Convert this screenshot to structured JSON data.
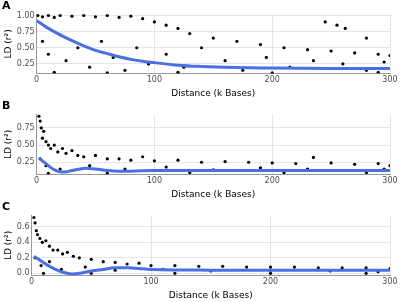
{
  "chart_data": [
    {
      "type": "scatter",
      "title": "A",
      "x_label": "Distance (k Bases)",
      "y_label": "LD (r²)",
      "xlim": [
        0,
        300
      ],
      "ylim": [
        0.1,
        1.02
      ],
      "xticks": [
        0,
        100,
        200,
        300
      ],
      "yticks": [
        0.25,
        {
          "value": 0.5,
          "label": "0.50"
        },
        0.75,
        {
          "value": 1,
          "label": "1.00"
        }
      ],
      "grid": true,
      "series": [
        {
          "type": "scatter",
          "color": "#000000",
          "marker": "circle",
          "x": [
            1,
            5,
            10,
            15,
            20,
            30,
            40,
            50,
            60,
            70,
            80,
            90,
            100,
            110,
            120,
            130,
            150,
            170,
            190,
            210,
            230,
            250,
            270,
            290,
            300,
            245,
            255,
            262,
            280,
            5,
            10,
            20,
            25,
            35,
            45,
            55,
            65,
            75,
            85,
            95,
            110,
            125,
            140,
            160,
            175,
            195,
            215,
            235,
            260,
            280,
            295,
            15,
            60,
            120,
            200,
            290
          ],
          "values": [
            1.0,
            0.98,
            1.0,
            0.97,
            1.0,
            0.99,
            1.0,
            0.98,
            1.0,
            0.97,
            0.99,
            0.95,
            0.9,
            0.85,
            0.8,
            0.72,
            0.65,
            0.6,
            0.55,
            0.5,
            0.47,
            0.45,
            0.42,
            0.4,
            0.38,
            0.9,
            0.85,
            0.8,
            0.65,
            0.6,
            0.4,
            0.7,
            0.3,
            0.5,
            0.2,
            0.6,
            0.35,
            0.15,
            0.5,
            0.25,
            0.4,
            0.2,
            0.5,
            0.3,
            0.15,
            0.35,
            0.2,
            0.3,
            0.25,
            0.15,
            0.28,
            0.12,
            0.11,
            0.12,
            0.11,
            0.12
          ]
        },
        {
          "type": "line",
          "color": "#4a6fe3",
          "line_style": "solid",
          "x": [
            0,
            5,
            10,
            20,
            30,
            40,
            50,
            60,
            70,
            80,
            90,
            100,
            120,
            140,
            160,
            180,
            200,
            250,
            300
          ],
          "values": [
            0.92,
            0.86,
            0.8,
            0.7,
            0.61,
            0.53,
            0.46,
            0.41,
            0.36,
            0.32,
            0.29,
            0.27,
            0.23,
            0.21,
            0.2,
            0.19,
            0.185,
            0.18,
            0.18
          ]
        }
      ]
    },
    {
      "type": "scatter",
      "title": "B",
      "x_label": "Distance (k Bases)",
      "y_label": "LD (r²)",
      "xlim": [
        0,
        300
      ],
      "ylim": [
        0.07,
        0.95
      ],
      "xticks": [
        0,
        100,
        200,
        300
      ],
      "yticks": [
        0.25,
        {
          "value": 0.5,
          "label": "0.50"
        },
        0.75
      ],
      "grid": true,
      "series": [
        {
          "type": "scatter",
          "color": "#000000",
          "marker": "circle",
          "x": [
            2,
            3,
            4,
            5,
            6,
            8,
            10,
            12,
            15,
            18,
            22,
            25,
            30,
            35,
            40,
            50,
            60,
            70,
            80,
            90,
            100,
            120,
            140,
            160,
            180,
            200,
            220,
            235,
            250,
            270,
            290,
            300,
            3,
            8,
            20,
            45,
            75,
            110,
            150,
            190,
            230,
            260,
            295,
            10,
            60,
            130,
            210,
            280
          ],
          "values": [
            0.92,
            0.85,
            0.75,
            0.6,
            0.7,
            0.55,
            0.5,
            0.45,
            0.5,
            0.4,
            0.45,
            0.38,
            0.42,
            0.35,
            0.33,
            0.35,
            0.3,
            0.3,
            0.28,
            0.33,
            0.27,
            0.28,
            0.25,
            0.26,
            0.25,
            0.24,
            0.23,
            0.32,
            0.24,
            0.22,
            0.23,
            0.2,
            0.3,
            0.2,
            0.15,
            0.2,
            0.15,
            0.18,
            0.14,
            0.17,
            0.15,
            0.13,
            0.15,
            0.09,
            0.09,
            0.1,
            0.1,
            0.1
          ]
        },
        {
          "type": "line",
          "color": "#4a6fe3",
          "line_style": "solid",
          "x": [
            2,
            5,
            10,
            15,
            20,
            25,
            30,
            40,
            50,
            60,
            70,
            80,
            100,
            150,
            200,
            250,
            300
          ],
          "values": [
            0.31,
            0.27,
            0.2,
            0.14,
            0.11,
            0.11,
            0.13,
            0.16,
            0.15,
            0.13,
            0.12,
            0.12,
            0.13,
            0.13,
            0.13,
            0.13,
            0.13
          ]
        }
      ]
    },
    {
      "type": "scatter",
      "title": "C",
      "x_label": "Distance (k Bases)",
      "y_label": "LD (r²)",
      "xlim": [
        0,
        300
      ],
      "ylim": [
        -0.03,
        0.75
      ],
      "xticks": [
        0,
        100,
        200,
        300
      ],
      "yticks": [
        {
          "value": 0,
          "label": "0.0"
        },
        {
          "value": 0.2,
          "label": "0.2"
        },
        {
          "value": 0.4,
          "label": "0.4"
        },
        {
          "value": 0.6,
          "label": "0.6"
        }
      ],
      "grid": true,
      "series": [
        {
          "type": "scatter",
          "color": "#000000",
          "marker": "circle",
          "x": [
            2,
            3,
            4,
            5,
            7,
            9,
            12,
            15,
            18,
            22,
            26,
            30,
            35,
            40,
            50,
            60,
            70,
            80,
            90,
            100,
            120,
            140,
            160,
            180,
            200,
            220,
            240,
            260,
            280,
            300,
            3,
            8,
            15,
            25,
            45,
            70,
            110,
            150,
            200,
            250,
            290,
            10,
            50,
            120,
            200,
            280
          ],
          "values": [
            0.72,
            0.65,
            0.55,
            0.5,
            0.45,
            0.4,
            0.42,
            0.35,
            0.3,
            0.3,
            0.25,
            0.27,
            0.22,
            0.2,
            0.18,
            0.15,
            0.14,
            0.12,
            0.13,
            0.1,
            0.1,
            0.09,
            0.09,
            0.08,
            0.08,
            0.08,
            0.07,
            0.07,
            0.07,
            0.06,
            0.2,
            0.1,
            0.15,
            0.05,
            0.08,
            0.04,
            0.05,
            0.03,
            0.04,
            0.03,
            0.02,
            0,
            0,
            0,
            0,
            0
          ]
        },
        {
          "type": "line",
          "color": "#4a6fe3",
          "line_style": "solid",
          "x": [
            2,
            5,
            10,
            15,
            20,
            25,
            30,
            35,
            40,
            50,
            60,
            70,
            80,
            100,
            150,
            200,
            250,
            300
          ],
          "values": [
            0.22,
            0.19,
            0.14,
            0.09,
            0.05,
            0.02,
            0.0,
            -0.01,
            0.0,
            0.03,
            0.05,
            0.07,
            0.07,
            0.05,
            0.04,
            0.04,
            0.04,
            0.04
          ]
        }
      ]
    }
  ]
}
